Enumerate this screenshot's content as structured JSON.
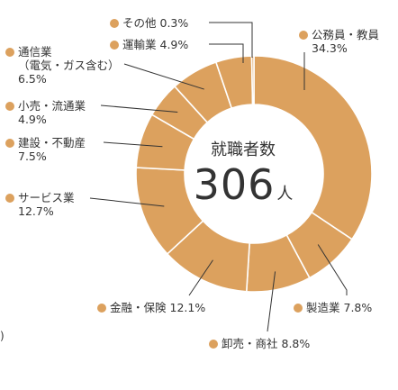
{
  "chart_data": {
    "type": "pie",
    "title": "",
    "center": {
      "label": "就職者数",
      "value": "306",
      "unit": "人"
    },
    "color": "#DCA15E",
    "slices": [
      {
        "name": "公務員・教員",
        "value": 34.3,
        "label": "34.3%"
      },
      {
        "name": "製造業",
        "value": 7.8,
        "label": "7.8%"
      },
      {
        "name": "卸売・商社",
        "value": 8.8,
        "label": "8.8%"
      },
      {
        "name": "金融・保険",
        "value": 12.1,
        "label": "12.1%"
      },
      {
        "name": "サービス業",
        "value": 12.7,
        "label": "12.7%"
      },
      {
        "name": "建設・不動産",
        "value": 7.5,
        "label": "7.5%"
      },
      {
        "name": "小売・流通業",
        "value": 4.9,
        "label": "4.9%"
      },
      {
        "name": "通信業",
        "note": "（電気・ガス含む）",
        "value": 6.5,
        "label": "6.5%"
      },
      {
        "name": "運輸業",
        "value": 4.9,
        "label": "4.9%"
      },
      {
        "name": "その他",
        "value": 0.3,
        "label": "0.3%"
      }
    ]
  },
  "edge_fragment": ")"
}
